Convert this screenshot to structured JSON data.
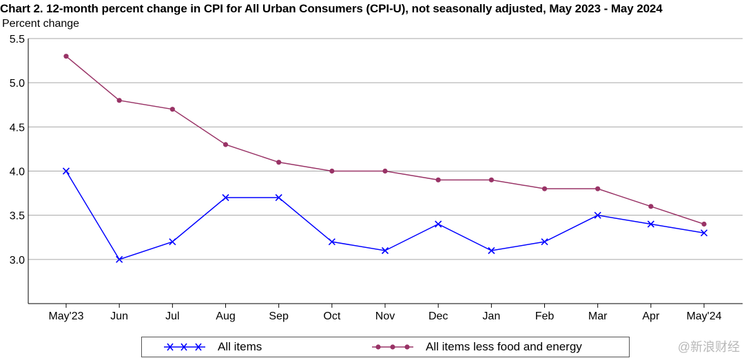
{
  "chart_data": {
    "type": "line",
    "title": "Chart 2. 12-month percent change in CPI for All Urban Consumers (CPI-U), not seasonally adjusted, May 2023 - May 2024",
    "ylabel": "Percent change",
    "xlabel": "",
    "categories": [
      "May'23",
      "Jun",
      "Jul",
      "Aug",
      "Sep",
      "Oct",
      "Nov",
      "Dec",
      "Jan",
      "Feb",
      "Mar",
      "Apr",
      "May'24"
    ],
    "ylim": [
      2.5,
      5.5
    ],
    "yticks": [
      "3.0",
      "3.5",
      "4.0",
      "4.5",
      "5.0",
      "5.5"
    ],
    "grid": "horizontal",
    "legend_position": "bottom",
    "series": [
      {
        "name": "All items",
        "color": "#0000ff",
        "marker": "x",
        "values": [
          4.0,
          3.0,
          3.2,
          3.7,
          3.7,
          3.2,
          3.1,
          3.4,
          3.1,
          3.2,
          3.5,
          3.4,
          3.3
        ]
      },
      {
        "name": "All items less food and energy",
        "color": "#993366",
        "marker": "circle",
        "values": [
          5.3,
          4.8,
          4.7,
          4.3,
          4.1,
          4.0,
          4.0,
          3.9,
          3.9,
          3.8,
          3.8,
          3.6,
          3.4
        ]
      }
    ]
  },
  "watermark": "@新浪财经"
}
